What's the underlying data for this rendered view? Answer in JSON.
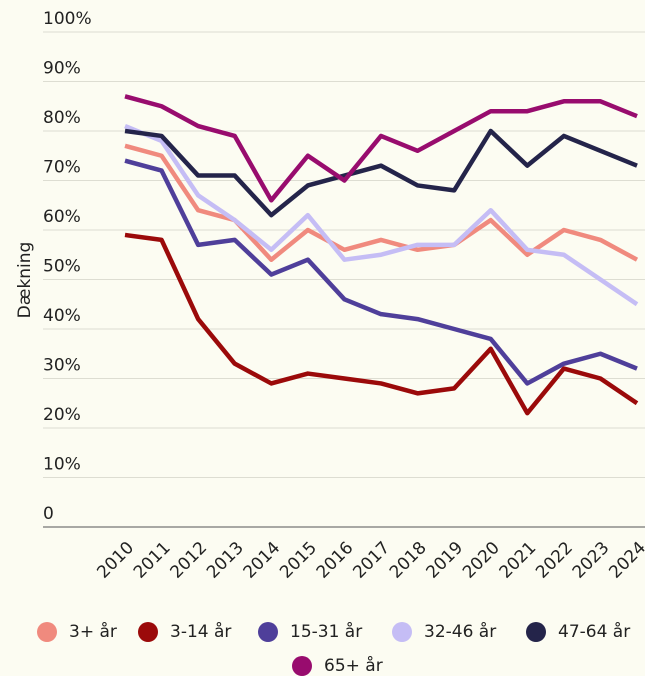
{
  "chart_data": {
    "type": "line",
    "y_label": "Dækning",
    "x": [
      "2010",
      "2011",
      "2012",
      "2013",
      "2014",
      "2015",
      "2016",
      "2017",
      "2018",
      "2019",
      "2020",
      "2021",
      "2022",
      "2023",
      "2024"
    ],
    "series": [
      {
        "name": "3+ år",
        "color": "#f08a7e",
        "values": [
          77,
          75,
          64,
          62,
          54,
          60,
          56,
          58,
          56,
          57,
          62,
          55,
          60,
          58,
          54
        ]
      },
      {
        "name": "3-14 år",
        "color": "#9b0a0a",
        "values": [
          59,
          58,
          42,
          33,
          29,
          31,
          30,
          29,
          27,
          28,
          36,
          23,
          32,
          30,
          25
        ]
      },
      {
        "name": "15-31 år",
        "color": "#4f3f9a",
        "values": [
          74,
          72,
          57,
          58,
          51,
          54,
          46,
          43,
          42,
          40,
          38,
          29,
          33,
          35,
          32
        ]
      },
      {
        "name": "32-46 år",
        "color": "#c5bdf5",
        "values": [
          81,
          78,
          67,
          62,
          56,
          63,
          54,
          55,
          57,
          57,
          64,
          56,
          55,
          50,
          45
        ]
      },
      {
        "name": "47-64 år",
        "color": "#24244a",
        "values": [
          80,
          79,
          71,
          71,
          63,
          69,
          71,
          73,
          69,
          68,
          80,
          73,
          79,
          76,
          73
        ]
      },
      {
        "name": "65+ år",
        "color": "#980c6e",
        "values": [
          87,
          85,
          81,
          79,
          66,
          75,
          70,
          79,
          76,
          80,
          84,
          84,
          86,
          86,
          83
        ]
      }
    ],
    "ylim": [
      0,
      100
    ],
    "yticks": [
      0,
      {
        "value": 10,
        "label": "10%"
      },
      {
        "value": 20,
        "label": "20%"
      },
      {
        "value": 30,
        "label": "30%"
      },
      {
        "value": 40,
        "label": "40%"
      },
      {
        "value": 50,
        "label": "50%"
      },
      {
        "value": 60,
        "label": "60%"
      },
      {
        "value": 70,
        "label": "70%"
      },
      {
        "value": 80,
        "label": "80%"
      },
      {
        "value": 90,
        "label": "90%"
      },
      {
        "value": 100,
        "label": "100%"
      }
    ],
    "grid": true
  }
}
